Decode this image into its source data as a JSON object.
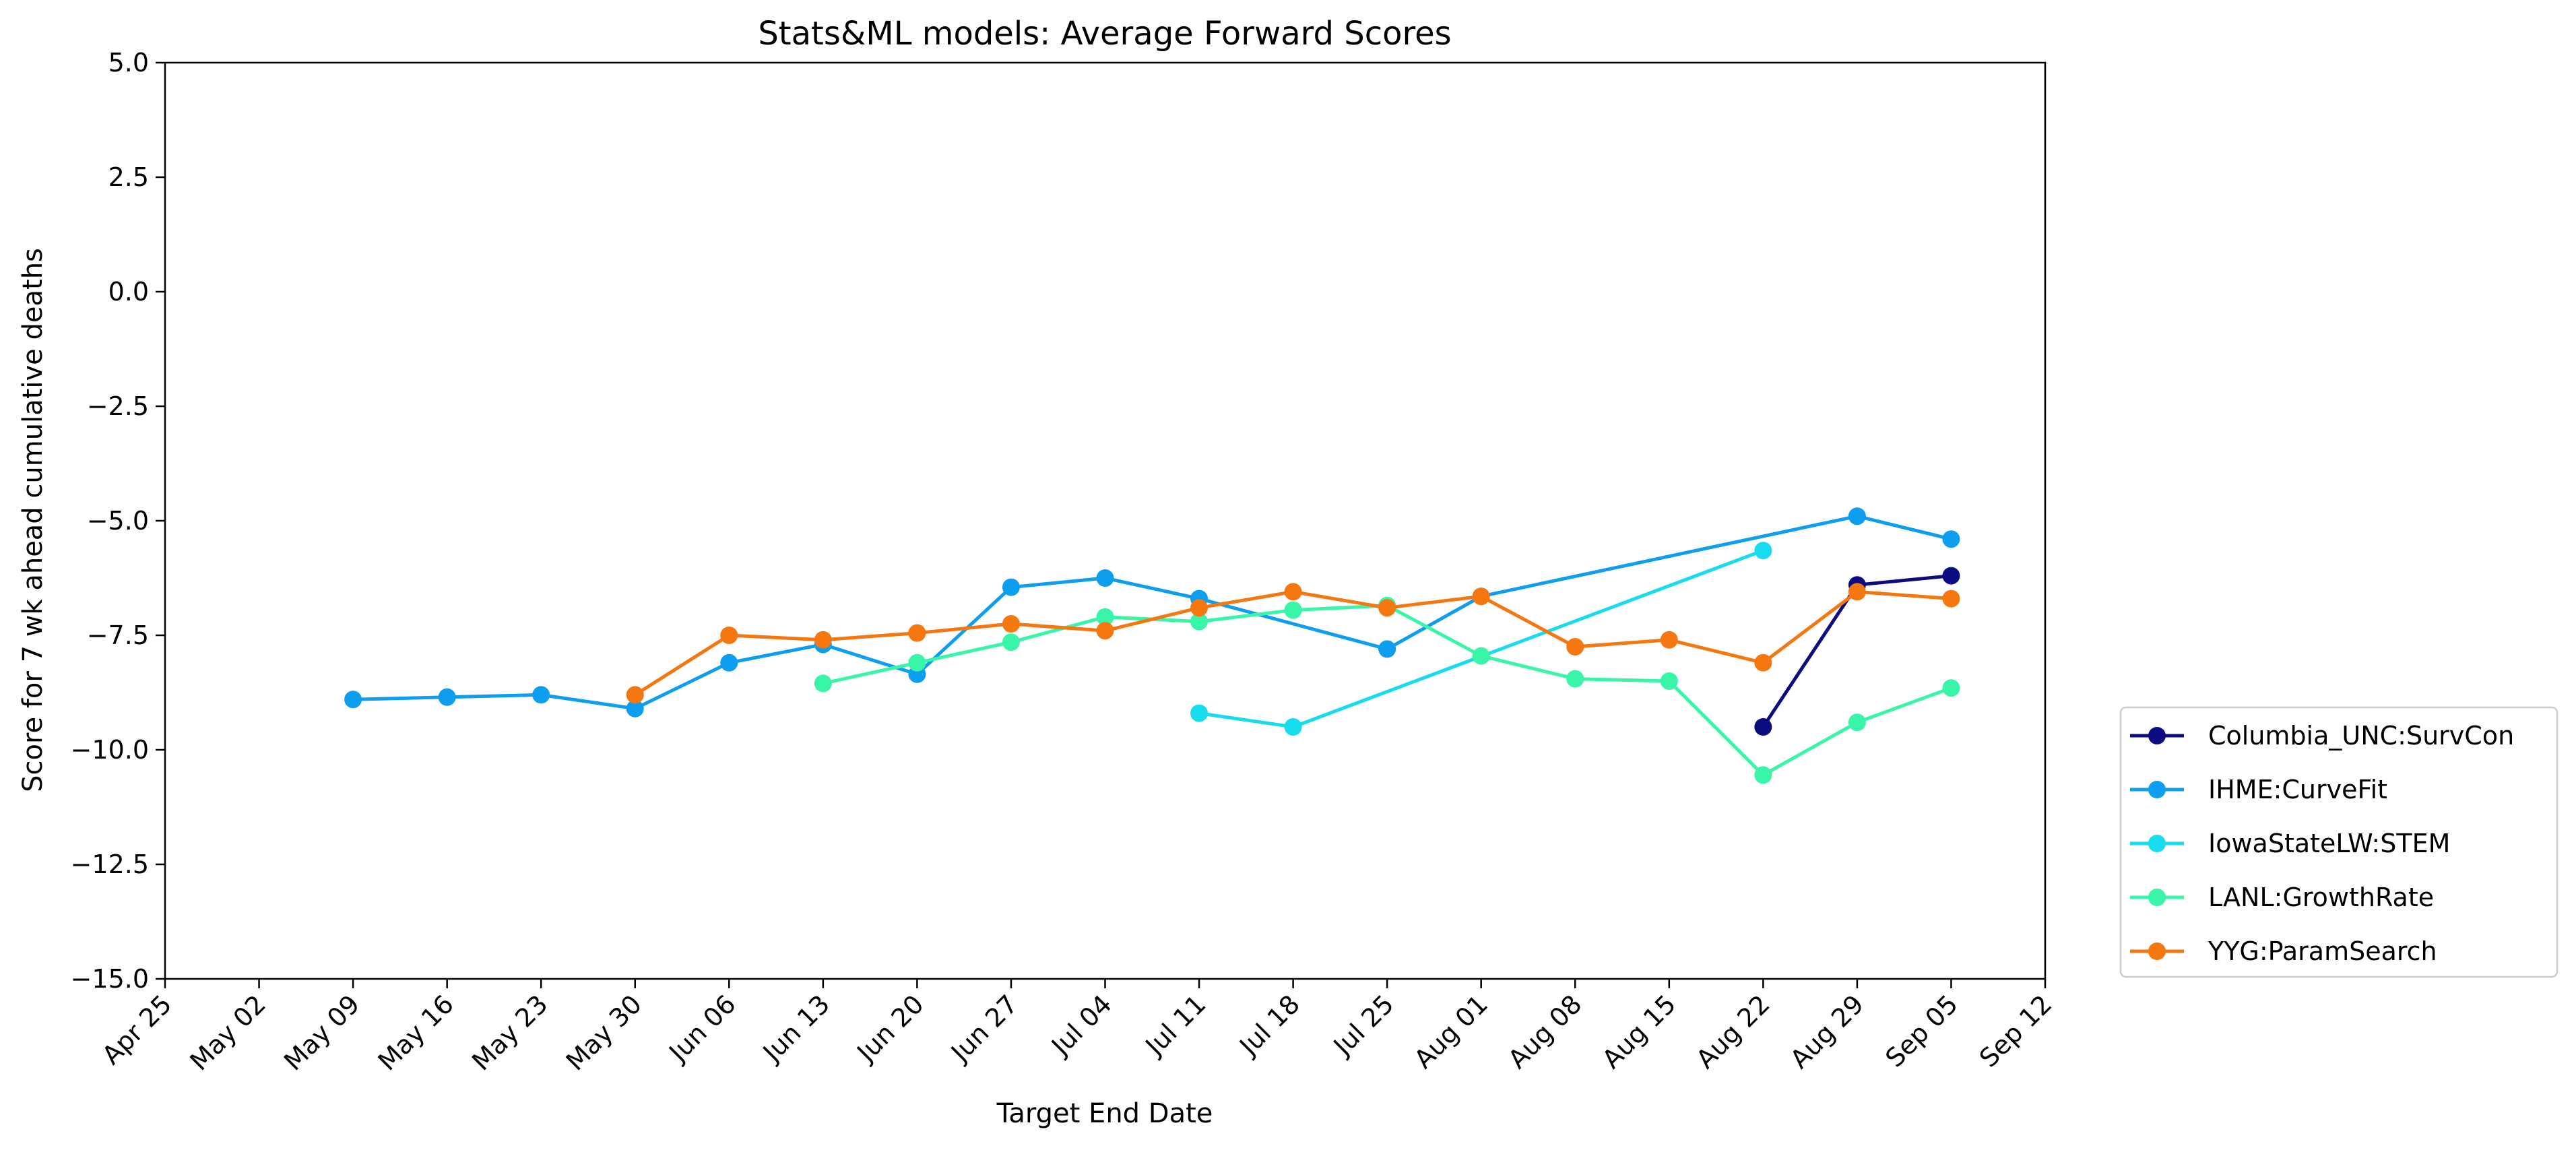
{
  "chart_data": {
    "type": "line",
    "title": "Stats&ML models: Average Forward Scores",
    "xlabel": "Target End Date",
    "ylabel": "Score for 7 wk ahead cumulative deaths",
    "xlim": [
      "2020-04-25",
      "2020-09-12"
    ],
    "ylim": [
      -15,
      5
    ],
    "x_ticks": [
      "Apr 25",
      "May 02",
      "May 09",
      "May 16",
      "May 23",
      "May 30",
      "Jun 06",
      "Jun 13",
      "Jun 20",
      "Jun 27",
      "Jul 04",
      "Jul 11",
      "Jul 18",
      "Jul 25",
      "Aug 01",
      "Aug 08",
      "Aug 15",
      "Aug 22",
      "Aug 29",
      "Sep 05",
      "Sep 12"
    ],
    "y_ticks": [
      "5.0",
      "2.5",
      "0.0",
      "−2.5",
      "−5.0",
      "−7.5",
      "−10.0",
      "−12.5",
      "−15.0"
    ],
    "grid": false,
    "legend_position": "outside-right-bottom",
    "series": [
      {
        "name": "Columbia_UNC:SurvCon",
        "color": "#0c0c80",
        "points": [
          {
            "x": "2020-08-22",
            "y": -9.5
          },
          {
            "x": "2020-08-29",
            "y": -6.4
          },
          {
            "x": "2020-09-05",
            "y": -6.2
          }
        ]
      },
      {
        "name": "IHME:CurveFit",
        "color": "#0d9ef0",
        "points": [
          {
            "x": "2020-05-09",
            "y": -8.9
          },
          {
            "x": "2020-05-16",
            "y": -8.85
          },
          {
            "x": "2020-05-23",
            "y": -8.8
          },
          {
            "x": "2020-05-30",
            "y": -9.1
          },
          {
            "x": "2020-06-06",
            "y": -8.1
          },
          {
            "x": "2020-06-13",
            "y": -7.7
          },
          {
            "x": "2020-06-20",
            "y": -8.35
          },
          {
            "x": "2020-06-27",
            "y": -6.45
          },
          {
            "x": "2020-07-04",
            "y": -6.25
          },
          {
            "x": "2020-07-11",
            "y": -6.7
          },
          {
            "x": "2020-07-25",
            "y": -7.8
          },
          {
            "x": "2020-08-01",
            "y": -6.65
          },
          {
            "x": "2020-08-29",
            "y": -4.9
          },
          {
            "x": "2020-09-05",
            "y": -5.4
          }
        ]
      },
      {
        "name": "IowaStateLW:STEM",
        "color": "#16dced",
        "points": [
          {
            "x": "2020-07-11",
            "y": -9.2
          },
          {
            "x": "2020-07-18",
            "y": -9.5
          },
          {
            "x": "2020-08-22",
            "y": -5.65
          }
        ]
      },
      {
        "name": "LANL:GrowthRate",
        "color": "#39f5a8",
        "points": [
          {
            "x": "2020-06-13",
            "y": -8.55
          },
          {
            "x": "2020-06-20",
            "y": -8.1
          },
          {
            "x": "2020-06-27",
            "y": -7.65
          },
          {
            "x": "2020-07-04",
            "y": -7.1
          },
          {
            "x": "2020-07-11",
            "y": -7.2
          },
          {
            "x": "2020-07-18",
            "y": -6.95
          },
          {
            "x": "2020-07-25",
            "y": -6.85
          },
          {
            "x": "2020-08-01",
            "y": -7.95
          },
          {
            "x": "2020-08-08",
            "y": -8.45
          },
          {
            "x": "2020-08-15",
            "y": -8.5
          },
          {
            "x": "2020-08-22",
            "y": -10.55
          },
          {
            "x": "2020-08-29",
            "y": -9.4
          },
          {
            "x": "2020-09-05",
            "y": -8.65
          }
        ]
      },
      {
        "name": "YYG:ParamSearch",
        "color": "#f57710",
        "points": [
          {
            "x": "2020-05-30",
            "y": -8.8
          },
          {
            "x": "2020-06-06",
            "y": -7.5
          },
          {
            "x": "2020-06-13",
            "y": -7.6
          },
          {
            "x": "2020-06-20",
            "y": -7.45
          },
          {
            "x": "2020-06-27",
            "y": -7.25
          },
          {
            "x": "2020-07-04",
            "y": -7.4
          },
          {
            "x": "2020-07-11",
            "y": -6.9
          },
          {
            "x": "2020-07-18",
            "y": -6.55
          },
          {
            "x": "2020-07-25",
            "y": -6.9
          },
          {
            "x": "2020-08-01",
            "y": -6.65
          },
          {
            "x": "2020-08-08",
            "y": -7.75
          },
          {
            "x": "2020-08-15",
            "y": -7.6
          },
          {
            "x": "2020-08-22",
            "y": -8.1
          },
          {
            "x": "2020-08-29",
            "y": -6.55
          },
          {
            "x": "2020-09-05",
            "y": -6.7
          }
        ]
      }
    ]
  }
}
